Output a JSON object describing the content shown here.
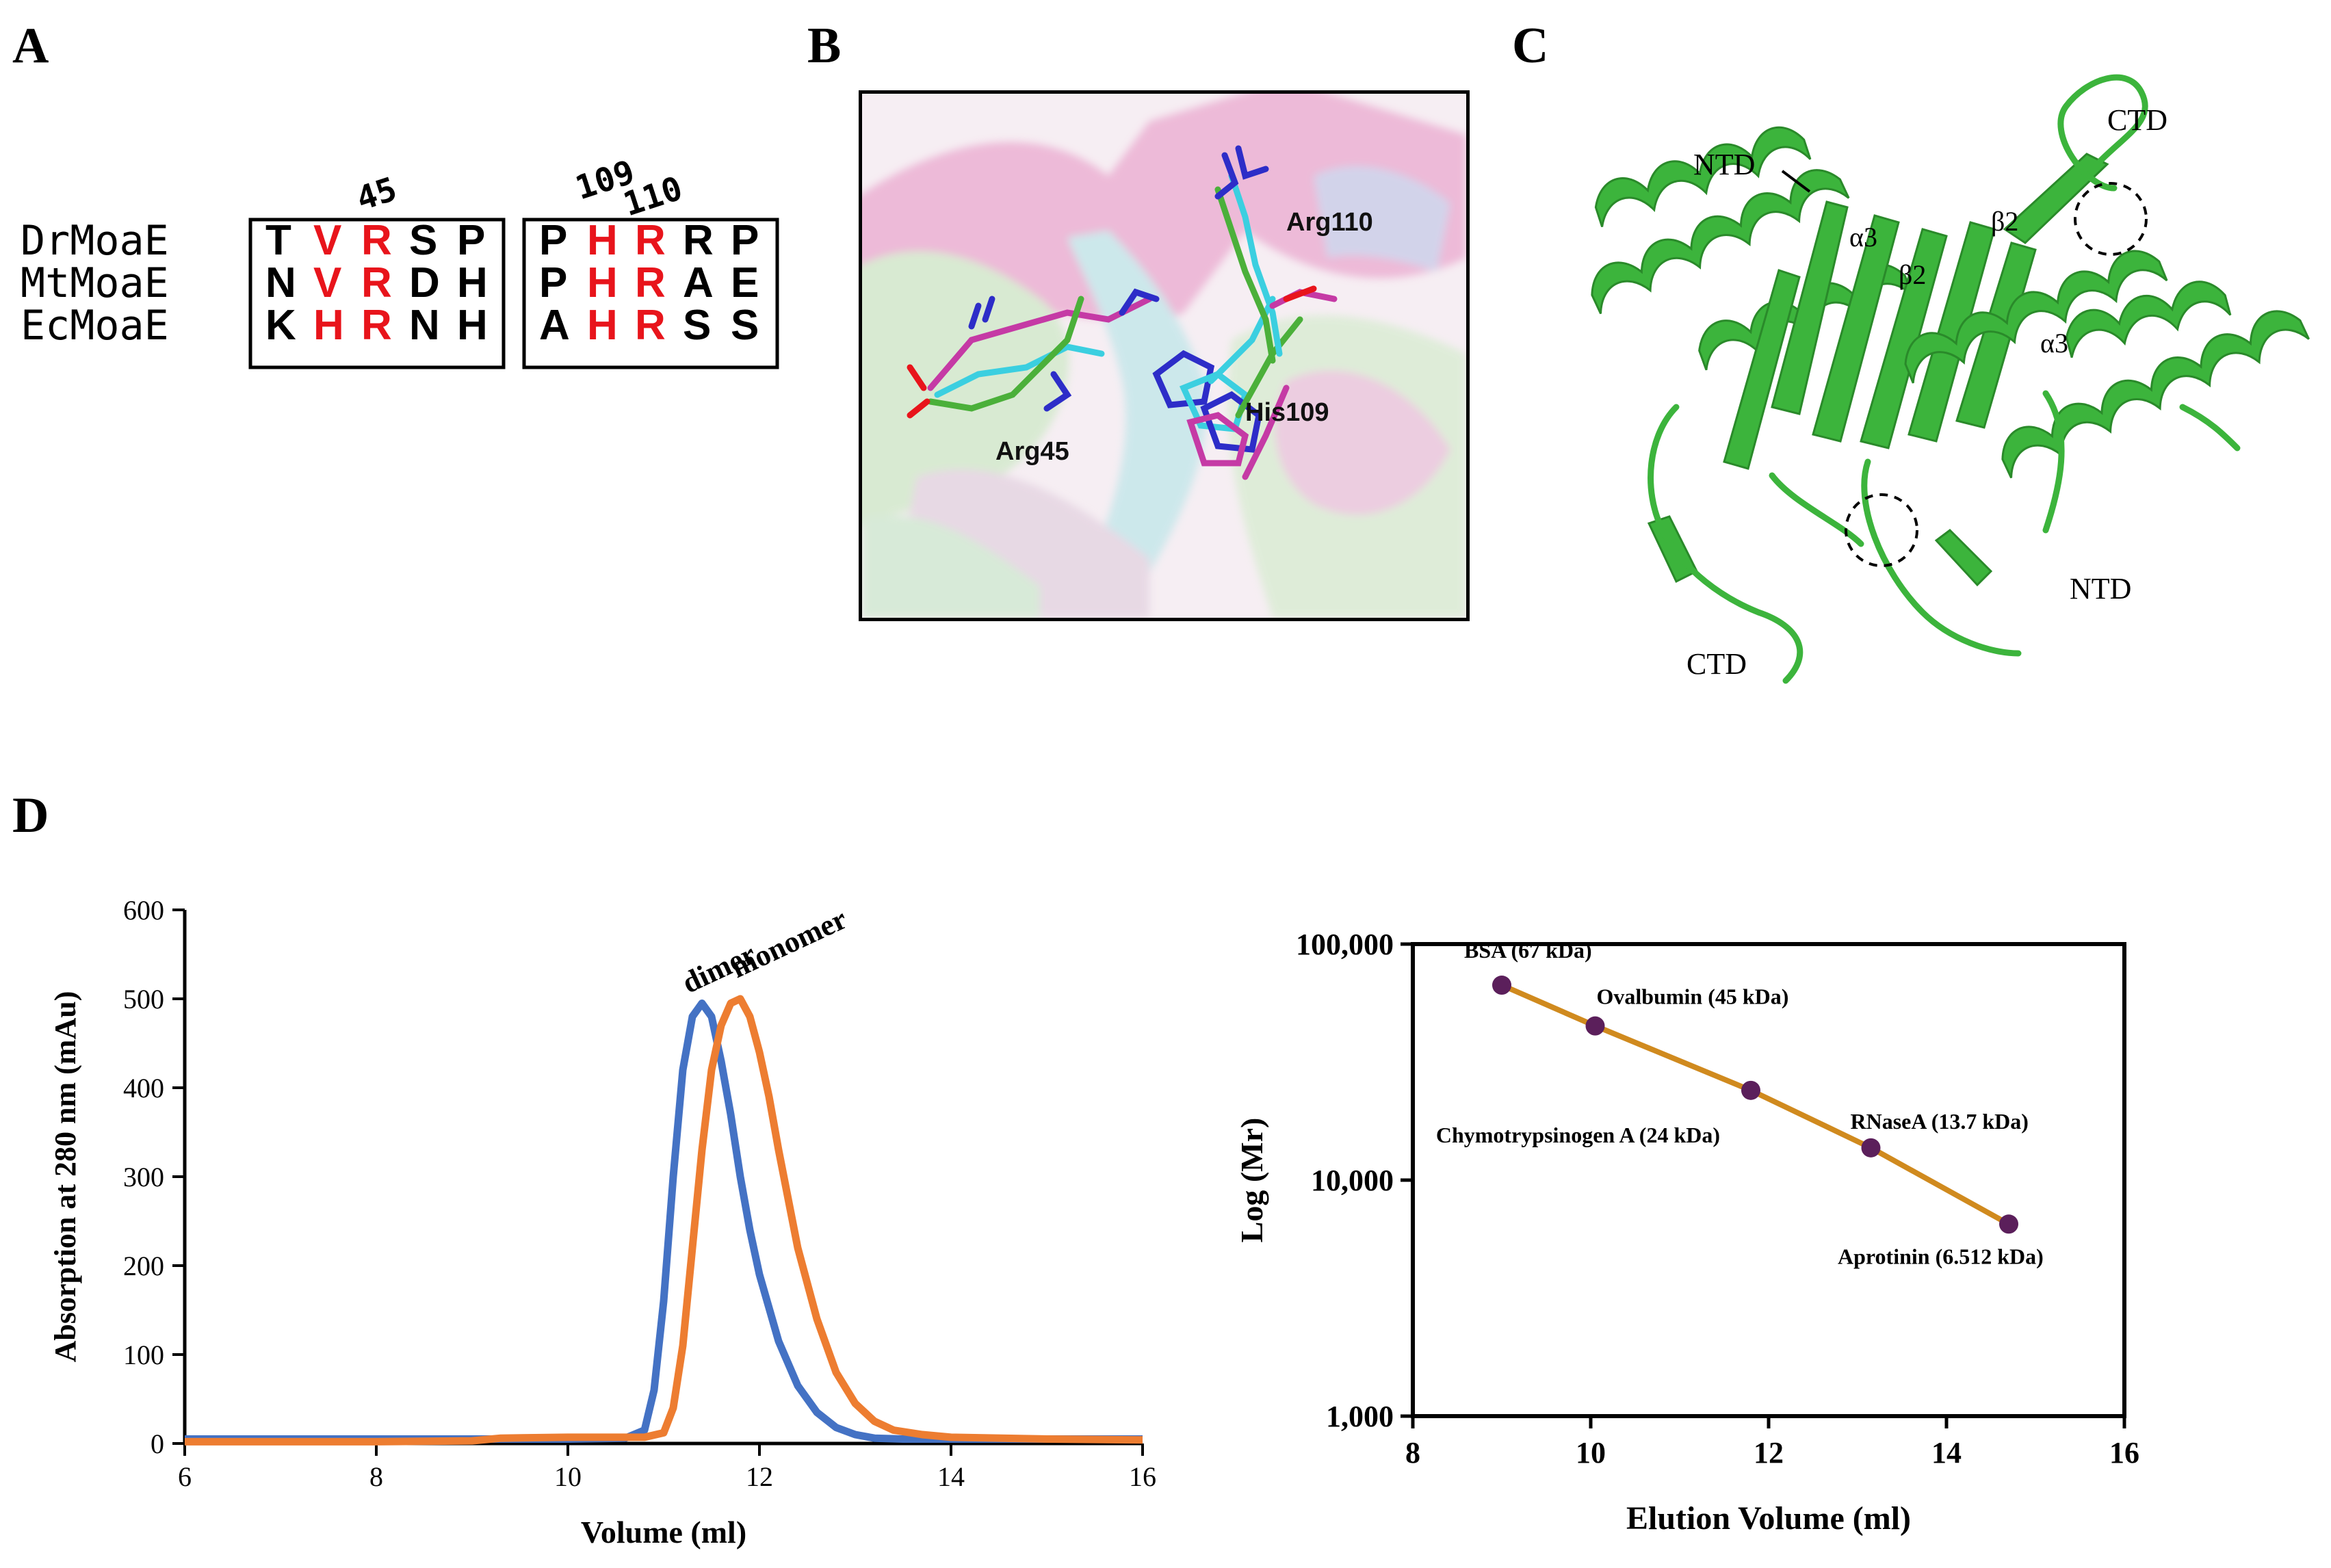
{
  "panels": {
    "a": "A",
    "b": "B",
    "c": "C",
    "d": "D"
  },
  "alignment": {
    "names": [
      "DrMoaE",
      "MtMoaE",
      "EcMoaE"
    ],
    "block1": {
      "rows": [
        [
          "T",
          "V",
          "R",
          "S",
          "P"
        ],
        [
          "N",
          "V",
          "R",
          "D",
          "H"
        ],
        [
          "K",
          "H",
          "R",
          "N",
          "H"
        ]
      ],
      "red_columns": [
        1,
        2
      ],
      "numbers": [
        "45"
      ]
    },
    "block2": {
      "rows": [
        [
          "P",
          "H",
          "R",
          "R",
          "P"
        ],
        [
          "P",
          "H",
          "R",
          "A",
          "E"
        ],
        [
          "A",
          "H",
          "R",
          "S",
          "S"
        ]
      ],
      "red_columns": [
        1,
        2
      ],
      "numbers": [
        "109",
        "110"
      ]
    },
    "highlight_color": "#e8141b"
  },
  "structure_b": {
    "labels": {
      "arg110": "Arg110",
      "arg45": "Arg45",
      "his109": "His109"
    }
  },
  "structure_c": {
    "labels": {
      "ntd_top": "NTD",
      "ctd_top": "CTD",
      "ntd_right": "NTD",
      "ctd_bottom": "CTD",
      "a3_left": "α3",
      "b2_left": "β2",
      "b2_right": "β2",
      "a3_right": "α3"
    },
    "color": "#3cb43c"
  },
  "chart_data": [
    {
      "type": "line",
      "xlabel": "Volume (ml)",
      "ylabel": "Absorption at 280 nm (mAu)",
      "xlim": [
        6,
        16
      ],
      "ylim": [
        0,
        600
      ],
      "xticks": [
        "6",
        "8",
        "10",
        "12",
        "14",
        "16"
      ],
      "yticks": [
        "0",
        "100",
        "200",
        "300",
        "400",
        "500",
        "600"
      ],
      "series": [
        {
          "name": "dimer",
          "color": "#4472c4",
          "x": [
            6,
            8,
            9,
            10,
            10.6,
            10.8,
            10.9,
            11.0,
            11.1,
            11.2,
            11.3,
            11.4,
            11.5,
            11.6,
            11.7,
            11.8,
            11.9,
            12.0,
            12.2,
            12.4,
            12.6,
            12.8,
            13.0,
            13.2,
            13.5,
            14,
            16
          ],
          "y": [
            5,
            5,
            5,
            5,
            6,
            15,
            60,
            160,
            300,
            420,
            480,
            495,
            480,
            430,
            370,
            300,
            240,
            190,
            115,
            65,
            35,
            18,
            10,
            6,
            5,
            5,
            5
          ]
        },
        {
          "name": "monomer",
          "color": "#ed7d31",
          "x": [
            6,
            8,
            9,
            9.3,
            10,
            10.8,
            11.0,
            11.1,
            11.2,
            11.3,
            11.4,
            11.5,
            11.6,
            11.7,
            11.8,
            11.9,
            12.0,
            12.1,
            12.2,
            12.4,
            12.6,
            12.8,
            13.0,
            13.2,
            13.4,
            13.7,
            14,
            15,
            16
          ],
          "y": [
            2,
            2,
            3,
            6,
            7,
            7,
            12,
            40,
            110,
            220,
            330,
            420,
            470,
            495,
            500,
            480,
            440,
            390,
            330,
            220,
            140,
            80,
            45,
            25,
            15,
            10,
            7,
            5,
            4
          ]
        }
      ]
    },
    {
      "type": "scatter",
      "xlabel": "Elution Volume (ml)",
      "ylabel": "Log (Mr)",
      "xlim": [
        8,
        16
      ],
      "ylim": [
        1000,
        100000
      ],
      "yscale": "log",
      "xticks": [
        "8",
        "10",
        "12",
        "14",
        "16"
      ],
      "yticks": [
        "1,000",
        "10,000",
        "100,000"
      ],
      "line_color": "#d08a1e",
      "marker_color": "#5b1f5b",
      "points": [
        {
          "label": "BSA (67 kDa)",
          "x": 9.0,
          "y": 67000
        },
        {
          "label": "Ovalbumin (45 kDa)",
          "x": 10.05,
          "y": 45000
        },
        {
          "label": "Chymotrypsinogen A (24 kDa)",
          "x": 11.8,
          "y": 24000
        },
        {
          "label": "RNaseA (13.7 kDa)",
          "x": 13.15,
          "y": 13700
        },
        {
          "label": "Aprotinin (6.512 kDa)",
          "x": 14.7,
          "y": 6512
        }
      ]
    }
  ]
}
